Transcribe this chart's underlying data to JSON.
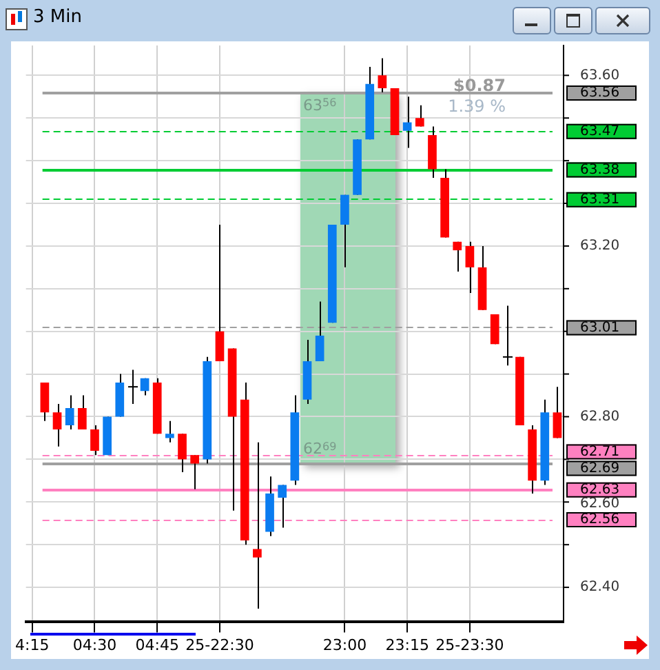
{
  "chart_data": {
    "type": "candlestick",
    "title": "3 Min",
    "categories": [
      "4:15",
      null,
      null,
      null,
      null,
      "04:30",
      null,
      null,
      null,
      null,
      "04:45",
      null,
      null,
      null,
      null,
      "25-22:30",
      null,
      null,
      null,
      null,
      null,
      null,
      null,
      null,
      null,
      "23:00",
      null,
      null,
      null,
      null,
      "23:15",
      null,
      null,
      null,
      null,
      "25-23:30",
      null,
      null,
      null,
      null,
      null,
      null,
      null
    ],
    "ohlc": [
      null,
      [
        62.88,
        62.88,
        62.79,
        62.81
      ],
      [
        62.81,
        62.83,
        62.73,
        62.77
      ],
      [
        62.78,
        62.85,
        62.77,
        62.82
      ],
      [
        62.82,
        62.85,
        62.77,
        62.77
      ],
      [
        62.77,
        62.78,
        62.71,
        62.72
      ],
      [
        62.71,
        62.8,
        62.71,
        62.8
      ],
      [
        62.8,
        62.9,
        62.8,
        62.88
      ],
      [
        62.87,
        62.91,
        62.83,
        62.87
      ],
      [
        62.86,
        62.89,
        62.85,
        62.89
      ],
      [
        62.88,
        62.89,
        62.76,
        62.76
      ],
      [
        62.75,
        62.79,
        62.74,
        62.76
      ],
      [
        62.76,
        62.76,
        62.67,
        62.7
      ],
      [
        62.71,
        62.71,
        62.63,
        62.69
      ],
      [
        62.7,
        62.94,
        62.69,
        62.93
      ],
      [
        63.0,
        63.25,
        62.93,
        62.93
      ],
      [
        62.96,
        62.96,
        62.58,
        62.8
      ],
      [
        62.84,
        62.88,
        62.5,
        62.51
      ],
      [
        62.49,
        62.74,
        62.35,
        62.47
      ],
      [
        62.53,
        62.66,
        62.52,
        62.62
      ],
      [
        62.61,
        62.64,
        62.54,
        62.64
      ],
      [
        62.65,
        62.85,
        62.64,
        62.81
      ],
      [
        62.84,
        62.98,
        62.83,
        62.93
      ],
      [
        62.93,
        63.07,
        62.93,
        62.99
      ],
      [
        63.02,
        63.25,
        63.02,
        63.25
      ],
      [
        63.25,
        63.32,
        63.15,
        63.32
      ],
      [
        63.32,
        63.45,
        63.32,
        63.45
      ],
      [
        63.45,
        63.62,
        63.45,
        63.58
      ],
      [
        63.6,
        63.64,
        63.56,
        63.57
      ],
      [
        63.57,
        63.57,
        63.46,
        63.46
      ],
      [
        63.47,
        63.55,
        63.43,
        63.49
      ],
      [
        63.5,
        63.53,
        63.48,
        63.48
      ],
      [
        63.46,
        63.48,
        63.36,
        63.38
      ],
      [
        63.36,
        63.38,
        63.22,
        63.22
      ],
      [
        63.21,
        63.21,
        63.14,
        63.19
      ],
      [
        63.2,
        63.21,
        63.09,
        63.15
      ],
      [
        63.15,
        63.2,
        63.05,
        63.05
      ],
      [
        63.04,
        63.04,
        62.97,
        62.97
      ],
      [
        62.94,
        63.06,
        62.92,
        62.94
      ],
      [
        62.94,
        62.94,
        62.78,
        62.78
      ],
      [
        62.77,
        62.78,
        62.62,
        62.65
      ],
      [
        62.65,
        62.84,
        62.64,
        62.81
      ],
      [
        62.81,
        62.87,
        62.75,
        62.75
      ]
    ],
    "colors": [
      null,
      "#ff0000",
      "#ff0000",
      "#0a7cf0",
      "#ff0000",
      "#ff0000",
      "#0a7cf0",
      "#0a7cf0",
      null,
      "#0a7cf0",
      "#ff0000",
      "#0a7cf0",
      "#ff0000",
      "#ff0000",
      "#0a7cf0",
      "#ff0000",
      "#ff0000",
      "#ff0000",
      "#ff0000",
      "#0a7cf0",
      "#0a7cf0",
      "#0a7cf0",
      "#0a7cf0",
      "#0a7cf0",
      "#0a7cf0",
      "#0a7cf0",
      "#0a7cf0",
      "#0a7cf0",
      "#ff0000",
      "#ff0000",
      "#0a7cf0",
      "#ff0000",
      "#ff0000",
      "#ff0000",
      "#ff0000",
      "#ff0000",
      "#ff0000",
      "#ff0000",
      null,
      "#ff0000",
      "#ff0000",
      "#0a7cf0",
      "#ff0000"
    ],
    "ylim": [
      62.32,
      63.67
    ],
    "yticks": [
      {
        "value": 62.4,
        "label": "62.40"
      },
      {
        "value": 62.5,
        "label": null
      },
      {
        "value": 62.6,
        "label": "62.60"
      },
      {
        "value": 62.7,
        "label": null
      },
      {
        "value": 62.8,
        "label": "62.80"
      },
      {
        "value": 62.9,
        "label": null
      },
      {
        "value": 63.0,
        "label": null
      },
      {
        "value": 63.1,
        "label": null
      },
      {
        "value": 63.2,
        "label": "63.20"
      },
      {
        "value": 63.3,
        "label": null
      },
      {
        "value": 63.4,
        "label": null
      },
      {
        "value": 63.5,
        "label": null
      },
      {
        "value": 63.6,
        "label": "63.60"
      }
    ],
    "grid": true,
    "ref_lines": [
      {
        "axis": "y",
        "value": 63.56,
        "label": "63.56",
        "color": "#a0a0a0",
        "line_style": "solid"
      },
      {
        "axis": "y",
        "value": 63.47,
        "label": "63.47",
        "color": "#00cc33",
        "line_style": "dashed"
      },
      {
        "axis": "y",
        "value": 63.38,
        "label": "63.38",
        "color": "#00cc33",
        "line_style": "solid"
      },
      {
        "axis": "y",
        "value": 63.31,
        "label": "63.31",
        "color": "#00cc33",
        "line_style": "dashed"
      },
      {
        "axis": "y",
        "value": 63.01,
        "label": "63.01",
        "color": "#a0a0a0",
        "line_style": "dashed"
      },
      {
        "axis": "y",
        "value": 62.71,
        "label": "62.71",
        "color": "#ff80c0",
        "line_style": "dashed"
      },
      {
        "axis": "y",
        "value": 62.69,
        "label": "62.69",
        "color": "#a0a0a0",
        "line_style": "solid"
      },
      {
        "axis": "y",
        "value": 62.63,
        "label": "62.63",
        "color": "#ff80c0",
        "line_style": "solid"
      },
      {
        "axis": "y",
        "value": 62.56,
        "label": "62.56",
        "color": "#ff80c0",
        "line_style": "dashed"
      }
    ],
    "annotations": [
      "$0.87",
      "1.39 %",
      {
        "text": "63$^{56}$",
        "y": 63.56
      },
      {
        "text": "62$^{69}$",
        "y": 62.69
      }
    ]
  }
}
